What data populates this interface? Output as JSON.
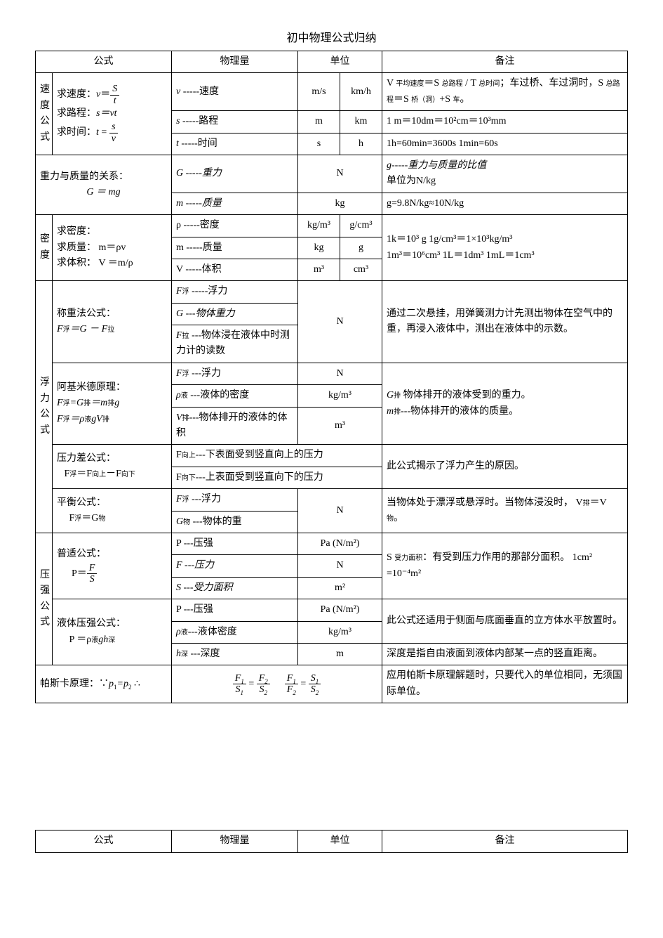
{
  "title": "初中物理公式归纳",
  "headers": {
    "formula": "公式",
    "quantity": "物理量",
    "unit": "单位",
    "note": "备注"
  },
  "speed": {
    "label": "速度公式",
    "row1": {
      "formula_prefix": "求速度：",
      "formula_var": "v",
      "formula_eq": "＝",
      "frac_num": "S",
      "frac_den": "t",
      "qty_sym": "v",
      "qty_text": " -----速度",
      "unit1": "m/s",
      "unit2": "km/h",
      "note_a": "V ",
      "note_a_sub": "平均速度",
      "note_b": "＝S ",
      "note_b_sub": "总路程",
      "note_c": " / T ",
      "note_c_sub": "总时间",
      "note_d": "；车过桥、车过洞时，S ",
      "note_d_sub": "总路程",
      "note_e": "＝S ",
      "note_e_sub": "桥（洞）",
      "note_f": "+S ",
      "note_f_sub": "车",
      "note_g": "。"
    },
    "row2": {
      "formula_prefix": "求路程：",
      "formula_body": "s＝vt",
      "qty_sym": "s",
      "qty_text": " -----路程",
      "unit1": "m",
      "unit2": "km",
      "note": "1 m＝10dm＝10²cm＝10³mm"
    },
    "row3": {
      "formula_prefix": "求时间：",
      "formula_var": "t",
      "formula_eq": " = ",
      "frac_num": "s",
      "frac_den": "v",
      "qty_sym": "t",
      "qty_text": " -----时间",
      "unit1": "s",
      "unit2": "h",
      "note": "1h=60min=3600s   1min=60s"
    }
  },
  "gravity": {
    "formula_line1": "重力与质量的关系：",
    "formula_line2": "G ＝ mg",
    "row1": {
      "qty": "G -----重力",
      "unit": "N",
      "note_a": "g-----重力与质量的比值",
      "note_b": "单位为N/kg"
    },
    "row2": {
      "qty": "m -----质量",
      "unit": "kg",
      "note": "g=9.8N/kg≈10N/kg"
    }
  },
  "density": {
    "label": "密度",
    "formula_l1": "求密度：",
    "formula_l2": "求质量：  m＝ρv",
    "formula_l3": "求体积：  V ＝m/ρ",
    "row1": {
      "qty": "ρ -----密度",
      "u1": "kg/m³",
      "u2": "g/cm³"
    },
    "row2": {
      "qty": "m -----质量",
      "u1": "kg",
      "u2": "g"
    },
    "row3": {
      "qty": "V -----体积",
      "u1": "m³",
      "u2": "cm³"
    },
    "note_l1": "1k＝10³ g   1g/cm³＝1×10³kg/m³",
    "note_l2": "1m³＝10⁶cm³   1L＝1dm³ 1mL＝1cm³"
  },
  "buoy": {
    "label": "浮力公式",
    "weigh": {
      "formula_l1": "称重法公式：",
      "formula_l2_a": "F",
      "formula_l2_a_sub": "浮",
      "formula_l2_b": "＝G － F",
      "formula_l2_b_sub": "拉",
      "q1": "F",
      "q1_sub": "浮",
      "q1_t": " -----浮力",
      "q2": "G ---物体重力",
      "q3": "F",
      "q3_sub": "拉",
      "q3_t": " ---物体浸在液体中时测力计的读数",
      "unit": "N",
      "note": "通过二次悬挂，用弹簧测力计先测出物体在空气中的重，再浸入液体中，测出在液体中的示数。"
    },
    "arch": {
      "formula_l1": "阿基米德原理：",
      "formula_l2_a": "F",
      "formula_l2_as": "浮",
      "formula_l2_b": "=G",
      "formula_l2_bs": "排",
      "formula_l2_c": "＝m",
      "formula_l2_cs": "排",
      "formula_l2_d": "g",
      "formula_l3_a": "F",
      "formula_l3_as": "浮",
      "formula_l3_b": "＝ρ",
      "formula_l3_bs": "液",
      "formula_l3_c": "gV",
      "formula_l3_cs": "排",
      "q1": "F",
      "q1_sub": "浮",
      "q1_t": " ---浮力",
      "u1": "N",
      "q2": "ρ",
      "q2_sub": "液",
      "q2_t": " ---液体的密度",
      "u2": "kg/m³",
      "q3": "V",
      "q3_sub": "排",
      "q3_t": "---物体排开的液体的体积",
      "u3": "m³",
      "note_l1_a": "G",
      "note_l1_as": "排",
      "note_l1_b": " 物体排开的液体受到的重力。",
      "note_l2_a": "m",
      "note_l2_as": "排",
      "note_l2_b": "---物体排开的液体的质量。"
    },
    "pdiff": {
      "formula_l1": "压力差公式：",
      "formula_l2_a": "F",
      "formula_l2_as": "浮",
      "formula_l2_b": "＝F",
      "formula_l2_bs": "向上",
      "formula_l2_c": "－F",
      "formula_l2_cs": "向下",
      "q1": "F",
      "q1_sub": "向上",
      "q1_t": "---下表面受到竖直向上的压力",
      "q2": "F",
      "q2_sub": "向下",
      "q2_t": "---上表面受到竖直向下的压力",
      "note": "此公式揭示了浮力产生的原因。"
    },
    "balance": {
      "formula_l1": "平衡公式：",
      "formula_l2_a": "F",
      "formula_l2_as": "浮",
      "formula_l2_b": "＝G",
      "formula_l2_bs": "物",
      "q1": "F",
      "q1_sub": "浮",
      "q1_t": " ---浮力",
      "q2": "G",
      "q2_sub": "物",
      "q2_t": " ---物体的重",
      "unit": "N",
      "note_a": "当物体处于漂浮或悬浮时。当物体浸没时，  V",
      "note_as": "排",
      "note_b": "＝V",
      "note_bs": "物",
      "note_c": "。"
    }
  },
  "pressure": {
    "label": "压强公式",
    "general": {
      "formula_l1": "普适公式：",
      "formula_pre": "P＝",
      "frac_num": "F",
      "frac_den": "S",
      "q1": "P ---压强",
      "u1": "Pa   (N/m²)",
      "q2": "F ---压力",
      "u2": "N",
      "q3": "S ---受力面积",
      "u3": "m²",
      "note_a": "S ",
      "note_as": "受力面积",
      "note_b": "：有受到压力作用的那部分面积。    1cm² =10⁻⁴m²"
    },
    "liquid": {
      "formula_l1": "液体压强公式：",
      "formula_l2_a": "P ＝ρ",
      "formula_l2_as": "液",
      "formula_l2_b": "gh",
      "formula_l2_bs": "深",
      "q1": "P ---压强",
      "u1": "Pa   (N/m²)",
      "q2": "ρ",
      "q2_sub": "液",
      "q2_t": "---液体密度",
      "u2": "kg/m³",
      "q3": "h",
      "q3_sub": "深",
      "q3_t": " ---深度",
      "u3": "m",
      "note1": "此公式还适用于侧面与底面垂直的立方体水平放置时。",
      "note2": "深度是指自由液面到液体内部某一点的竖直距离。"
    }
  },
  "pascal": {
    "formula_a": "帕斯卡原理：∵",
    "formula_b": "p",
    "formula_bs": "1",
    "formula_c": "=p",
    "formula_cs": "2",
    "formula_d": " ∴",
    "eq1_n1": "F",
    "eq1_n1s": "1",
    "eq1_d1": "S",
    "eq1_d1s": "1",
    "eq1_n2": "F",
    "eq1_n2s": "2",
    "eq1_d2": "S",
    "eq1_d2s": "2",
    "eq2_n1": "F",
    "eq2_n1s": "1",
    "eq2_d1": "F",
    "eq2_d1s": "2",
    "eq2_n2": "S",
    "eq2_n2s": "1",
    "eq2_d2": "S",
    "eq2_d2s": "2",
    "eq_mid": " = ",
    "note": "应用帕斯卡原理解题时，只要代入的单位相同，无须国际单位。"
  }
}
